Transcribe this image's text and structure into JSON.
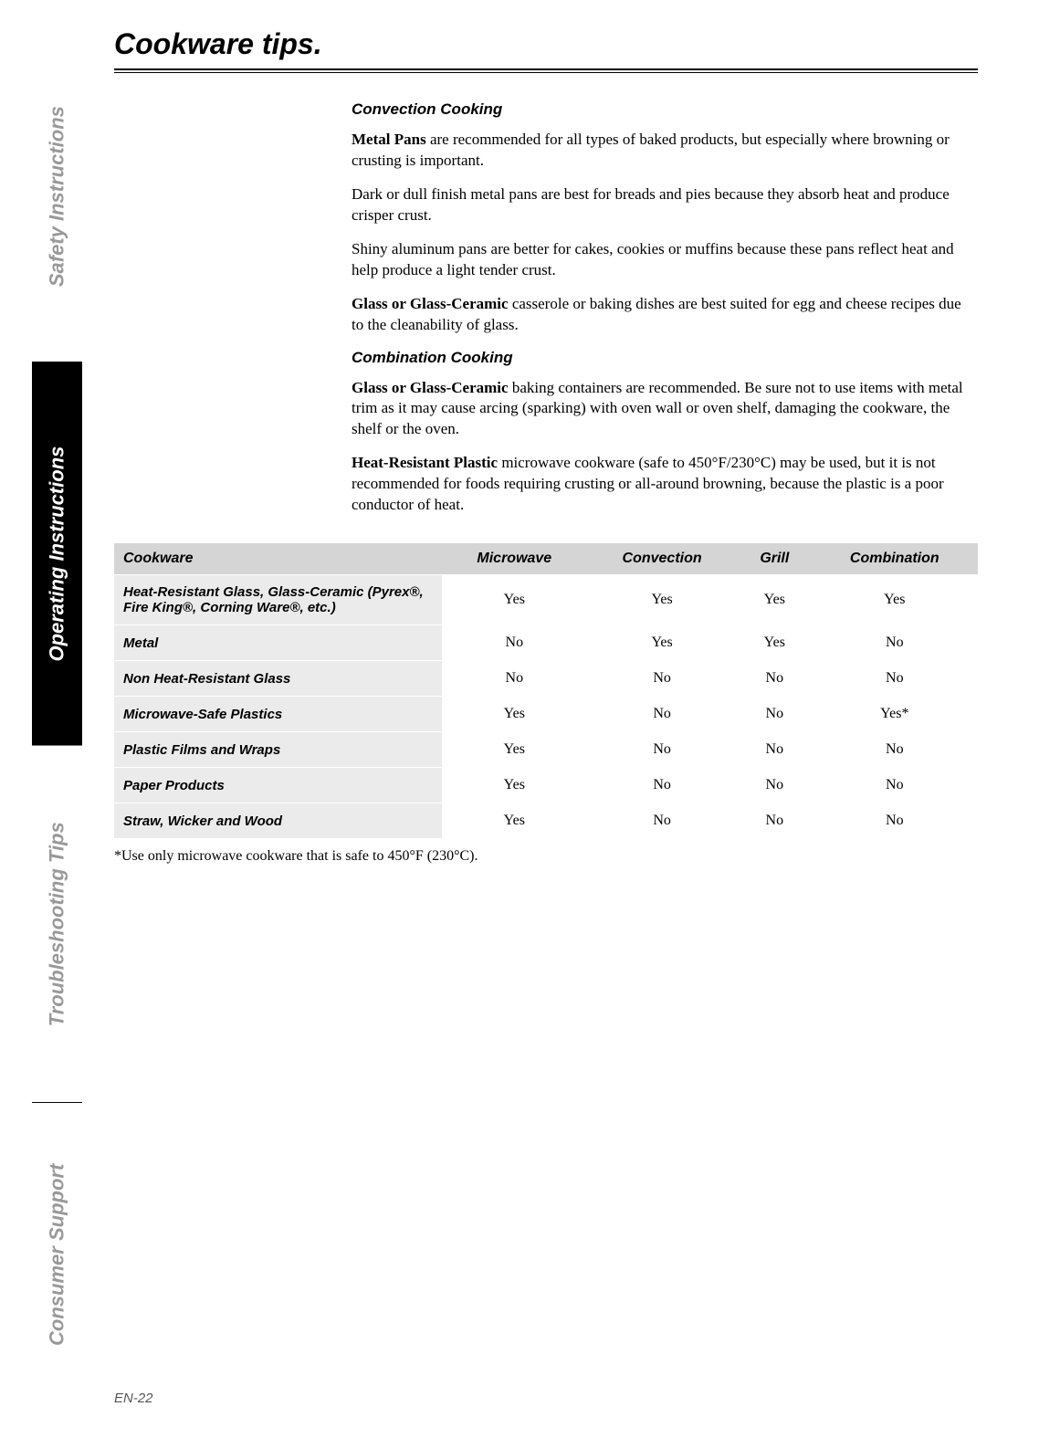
{
  "tabs": {
    "safety": "Safety Instructions",
    "operating": "Operating Instructions",
    "troubleshooting": "Troubleshooting Tips",
    "consumer": "Consumer Support"
  },
  "page_title": "Cookware tips.",
  "sections": {
    "convection": {
      "heading": "Convection Cooking",
      "p1_bold": "Metal Pans",
      "p1_rest": " are recommended for all types of baked products, but especially where browning or crusting is important.",
      "p2": "Dark or dull finish metal pans are best for breads and pies because they absorb heat and produce crisper crust.",
      "p3": "Shiny aluminum pans are better for cakes, cookies or muffins because these pans reflect heat and help produce a light tender crust.",
      "p4_bold": "Glass or Glass-Ceramic",
      "p4_rest": " casserole or baking dishes are best suited for egg and cheese recipes due to the cleanability of glass."
    },
    "combination": {
      "heading": "Combination Cooking",
      "p1_bold": "Glass or Glass-Ceramic",
      "p1_rest": " baking containers are recommended. Be sure not to use items with metal trim as it may cause arcing (sparking) with oven wall or oven shelf, damaging the cookware, the shelf or the oven.",
      "p2_bold": "Heat-Resistant Plastic",
      "p2_rest": " microwave cookware (safe to 450°F/230°C) may be used, but it is not recommended for foods requiring crusting or all-around browning, because the plastic is a poor conductor of heat."
    }
  },
  "table": {
    "headers": [
      "Cookware",
      "Microwave",
      "Convection",
      "Grill",
      "Combination"
    ],
    "rows": [
      [
        "Heat-Resistant Glass, Glass-Ceramic (Pyrex®, Fire King®, Corning Ware®, etc.)",
        "Yes",
        "Yes",
        "Yes",
        "Yes"
      ],
      [
        "Metal",
        "No",
        "Yes",
        "Yes",
        "No"
      ],
      [
        "Non Heat-Resistant Glass",
        "No",
        "No",
        "No",
        "No"
      ],
      [
        "Microwave-Safe Plastics",
        "Yes",
        "No",
        "No",
        "Yes*"
      ],
      [
        "Plastic Films and Wraps",
        "Yes",
        "No",
        "No",
        "No"
      ],
      [
        "Paper Products",
        "Yes",
        "No",
        "No",
        "No"
      ],
      [
        "Straw, Wicker and Wood",
        "Yes",
        "No",
        "No",
        "No"
      ]
    ]
  },
  "footnote": "*Use only microwave cookware that is safe to 450°F (230°C).",
  "page_number": "EN-22",
  "colors": {
    "header_bg": "#d5d5d5",
    "row_label_bg": "#ebebeb",
    "inactive_tab": "#999999",
    "active_tab_bg": "#000000"
  }
}
